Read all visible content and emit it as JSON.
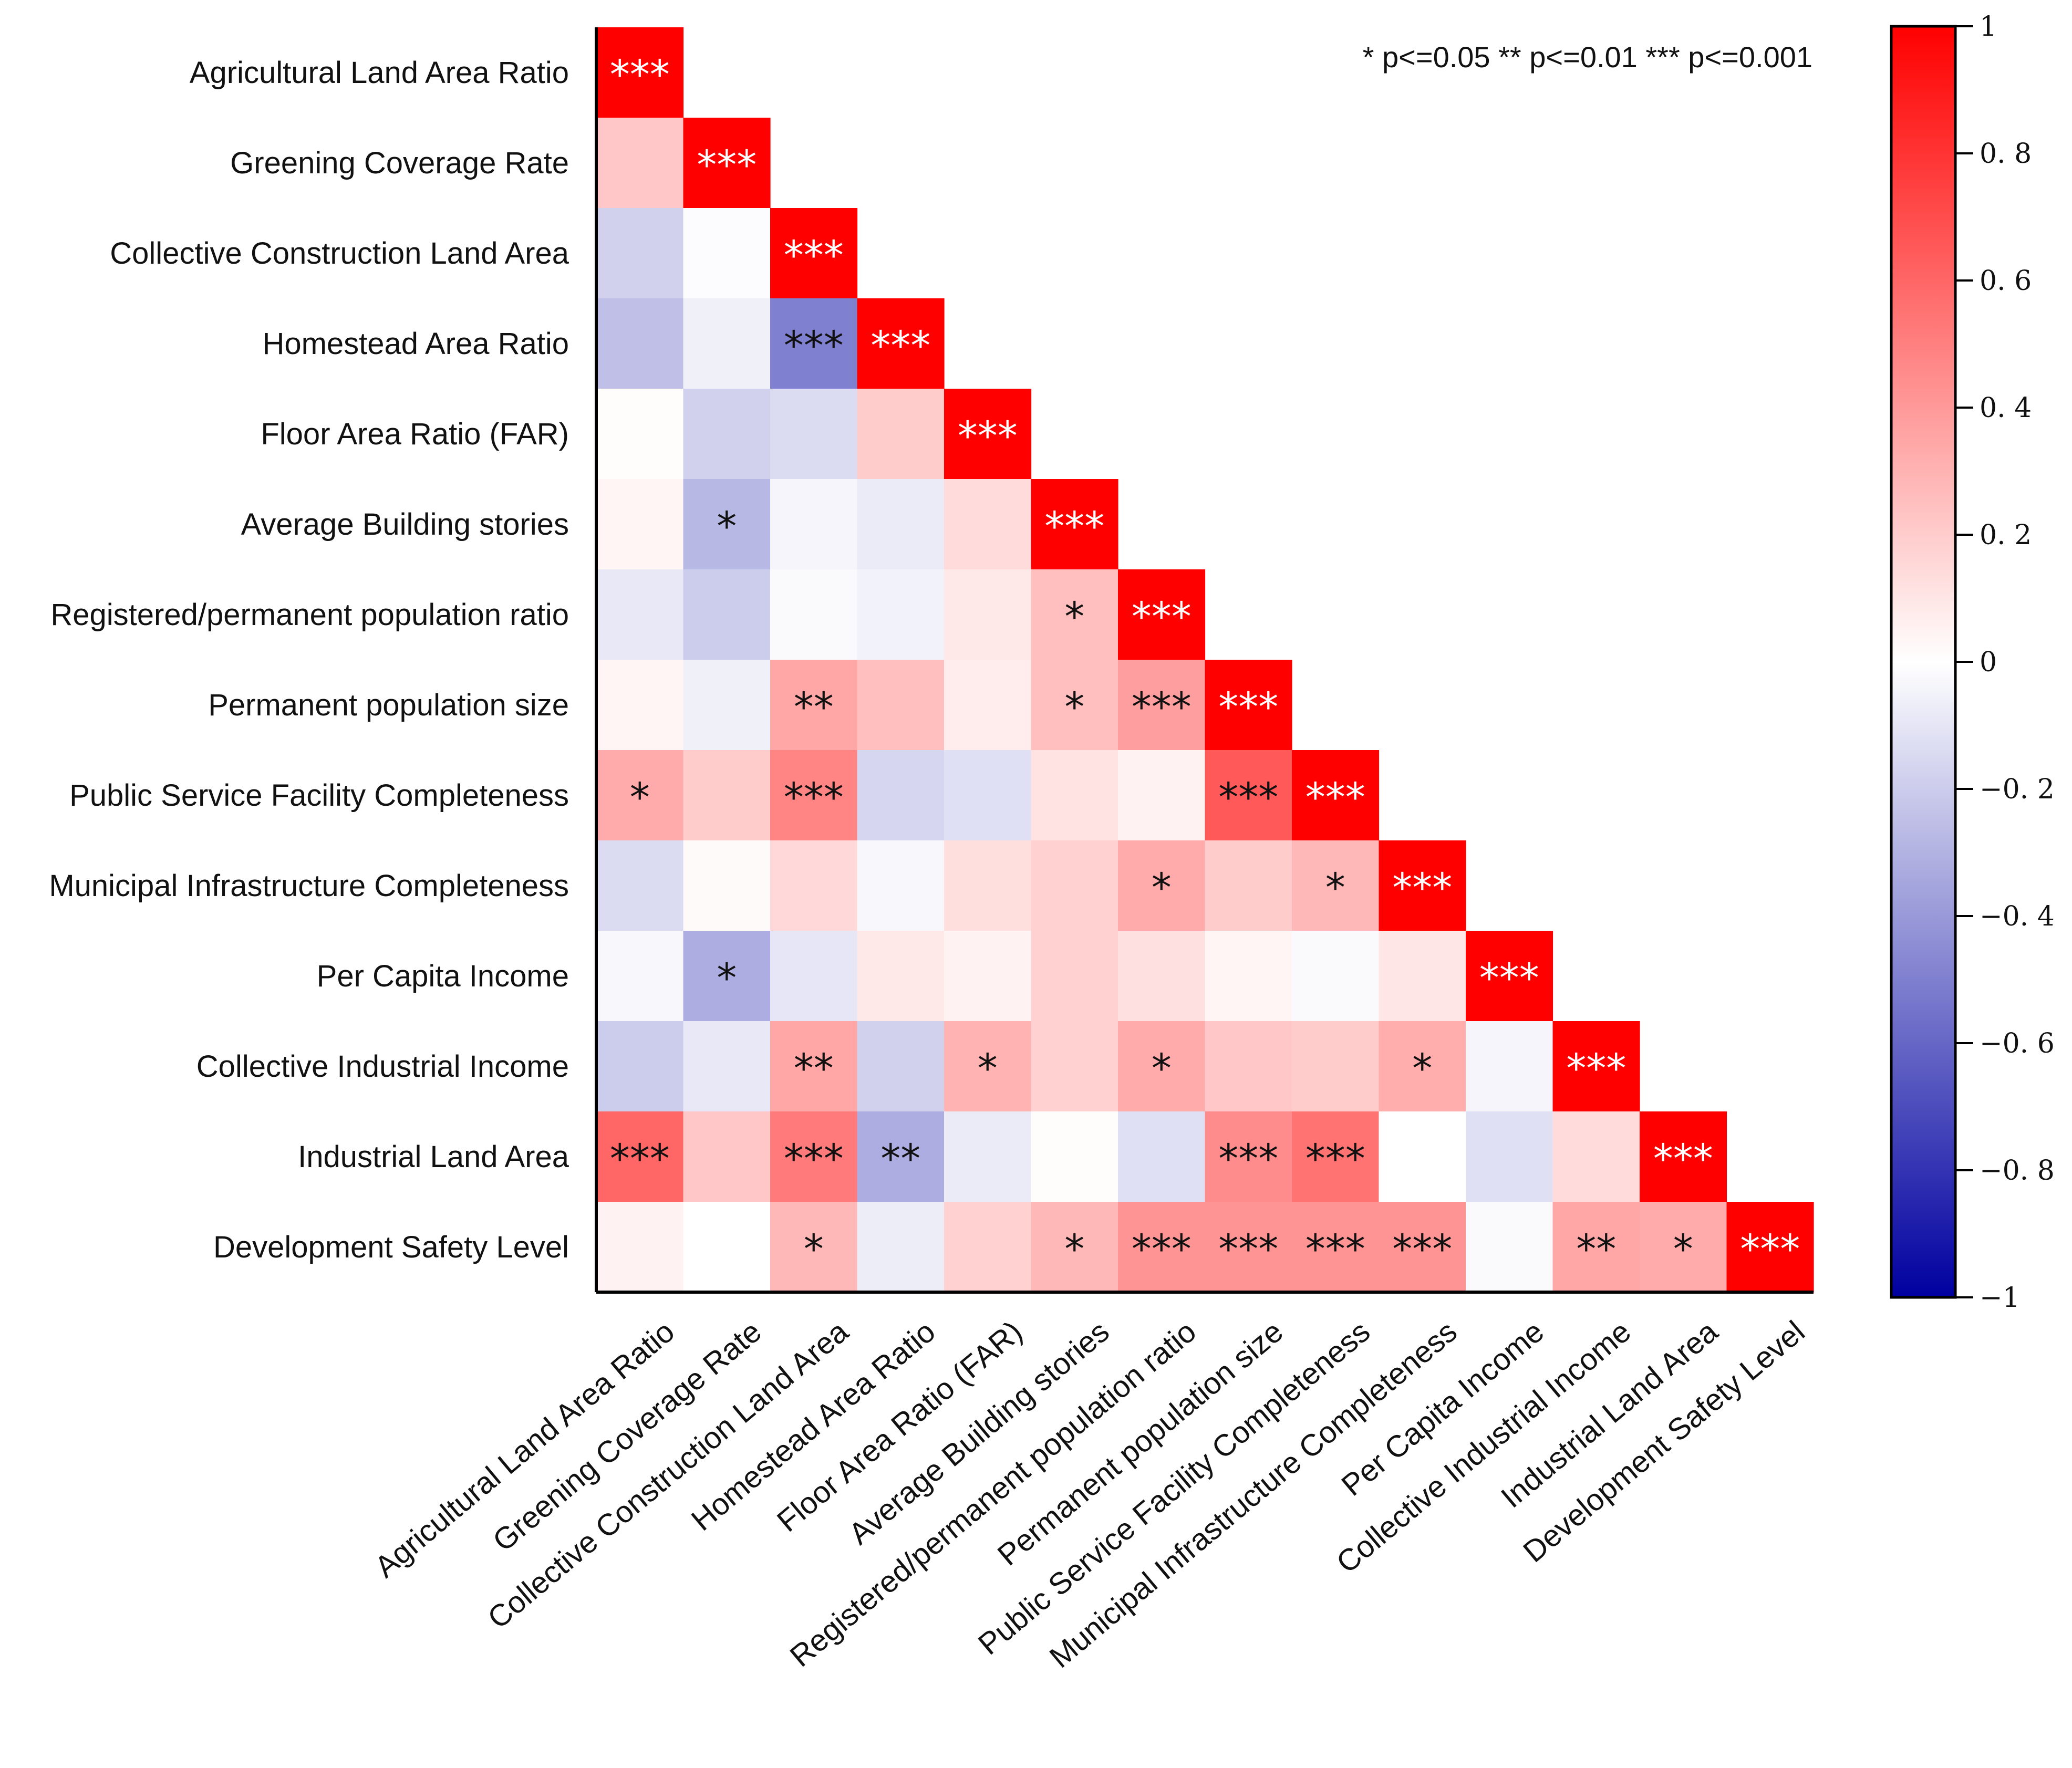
{
  "chart_data": {
    "type": "heatmap",
    "title": "",
    "subtitle": "",
    "xlabel": "",
    "ylabel": "",
    "matrix_shape": "lower-triangular",
    "variables": [
      "Agricultural Land Area Ratio",
      "Greening Coverage Rate",
      "Collective Construction Land Area",
      "Homestead Area Ratio",
      "Floor Area Ratio (FAR)",
      "Average Building stories",
      "Registered/permanent population ratio",
      "Permanent population size",
      "Public Service Facility Completeness",
      "Municipal Infrastructure Completeness",
      "Per Capita Income",
      "Collective Industrial Income",
      "Industrial Land Area",
      "Development Safety Level"
    ],
    "values": [
      [
        1.0
      ],
      [
        0.22,
        1.0
      ],
      [
        -0.18,
        -0.01,
        1.0
      ],
      [
        -0.25,
        -0.06,
        -0.5,
        1.0
      ],
      [
        0.01,
        -0.18,
        -0.14,
        0.2,
        1.0
      ],
      [
        0.04,
        -0.28,
        -0.04,
        -0.08,
        0.14,
        1.0
      ],
      [
        -0.09,
        -0.2,
        -0.02,
        -0.05,
        0.09,
        0.25,
        1.0
      ],
      [
        0.04,
        -0.06,
        0.35,
        0.25,
        0.07,
        0.25,
        0.38,
        1.0
      ],
      [
        0.33,
        0.2,
        0.48,
        -0.16,
        -0.12,
        0.11,
        0.05,
        0.65,
        1.0
      ],
      [
        -0.14,
        0.02,
        0.15,
        -0.03,
        0.13,
        0.18,
        0.33,
        0.2,
        0.28,
        1.0
      ],
      [
        -0.03,
        -0.32,
        -0.1,
        0.09,
        0.05,
        0.18,
        0.12,
        0.04,
        -0.02,
        0.1,
        1.0
      ],
      [
        -0.2,
        -0.09,
        0.35,
        -0.18,
        0.3,
        0.18,
        0.33,
        0.22,
        0.2,
        0.32,
        -0.04,
        1.0
      ],
      [
        0.6,
        0.22,
        0.52,
        -0.32,
        -0.08,
        0.01,
        -0.12,
        0.45,
        0.55,
        0.0,
        -0.12,
        0.14,
        1.0
      ],
      [
        0.05,
        0.0,
        0.28,
        -0.07,
        0.18,
        0.28,
        0.42,
        0.42,
        0.42,
        0.42,
        -0.02,
        0.35,
        0.33,
        1.0
      ]
    ],
    "significance": [
      [
        "***"
      ],
      [
        "",
        "***"
      ],
      [
        "",
        "",
        "***"
      ],
      [
        "",
        "",
        "***",
        "***"
      ],
      [
        "",
        "",
        "",
        "",
        "***"
      ],
      [
        "",
        "*",
        "",
        "",
        "",
        "***"
      ],
      [
        "",
        "",
        "",
        "",
        "",
        "*",
        "***"
      ],
      [
        "",
        "",
        "**",
        "",
        "",
        "*",
        "***",
        "***"
      ],
      [
        "*",
        "",
        "***",
        "",
        "",
        "",
        "",
        "***",
        "***"
      ],
      [
        "",
        "",
        "",
        "",
        "",
        "",
        "*",
        "",
        "*",
        "***"
      ],
      [
        "",
        "*",
        "",
        "",
        "",
        "",
        "",
        "",
        "",
        "",
        "***"
      ],
      [
        "",
        "",
        "**",
        "",
        "*",
        "",
        "*",
        "",
        "",
        "*",
        "",
        "***"
      ],
      [
        "***",
        "",
        "***",
        "**",
        "",
        "",
        "",
        "***",
        "***",
        "",
        "",
        "",
        "***"
      ],
      [
        "",
        "",
        "*",
        "",
        "",
        "*",
        "***",
        "***",
        "***",
        "***",
        "",
        "**",
        "*",
        "***"
      ]
    ],
    "significance_legend": "* p<=0.05  ** p<=0.01  *** p<=0.001",
    "colorbar": {
      "range": [
        -1,
        1
      ],
      "ticks": [
        1,
        0.8,
        0.6,
        0.4,
        0.2,
        0,
        -0.2,
        -0.4,
        -0.6,
        -0.8,
        -1
      ],
      "tick_labels": [
        "1",
        "0. 8",
        "0. 6",
        "0. 4",
        "0. 2",
        "0",
        "−0. 2",
        "−0. 4",
        "−0. 6",
        "−0. 8",
        "−1"
      ],
      "low_color": "#0000a0",
      "mid_color": "#ffffff",
      "high_color": "#ff0000"
    },
    "grid": false,
    "legend_position": "right"
  }
}
